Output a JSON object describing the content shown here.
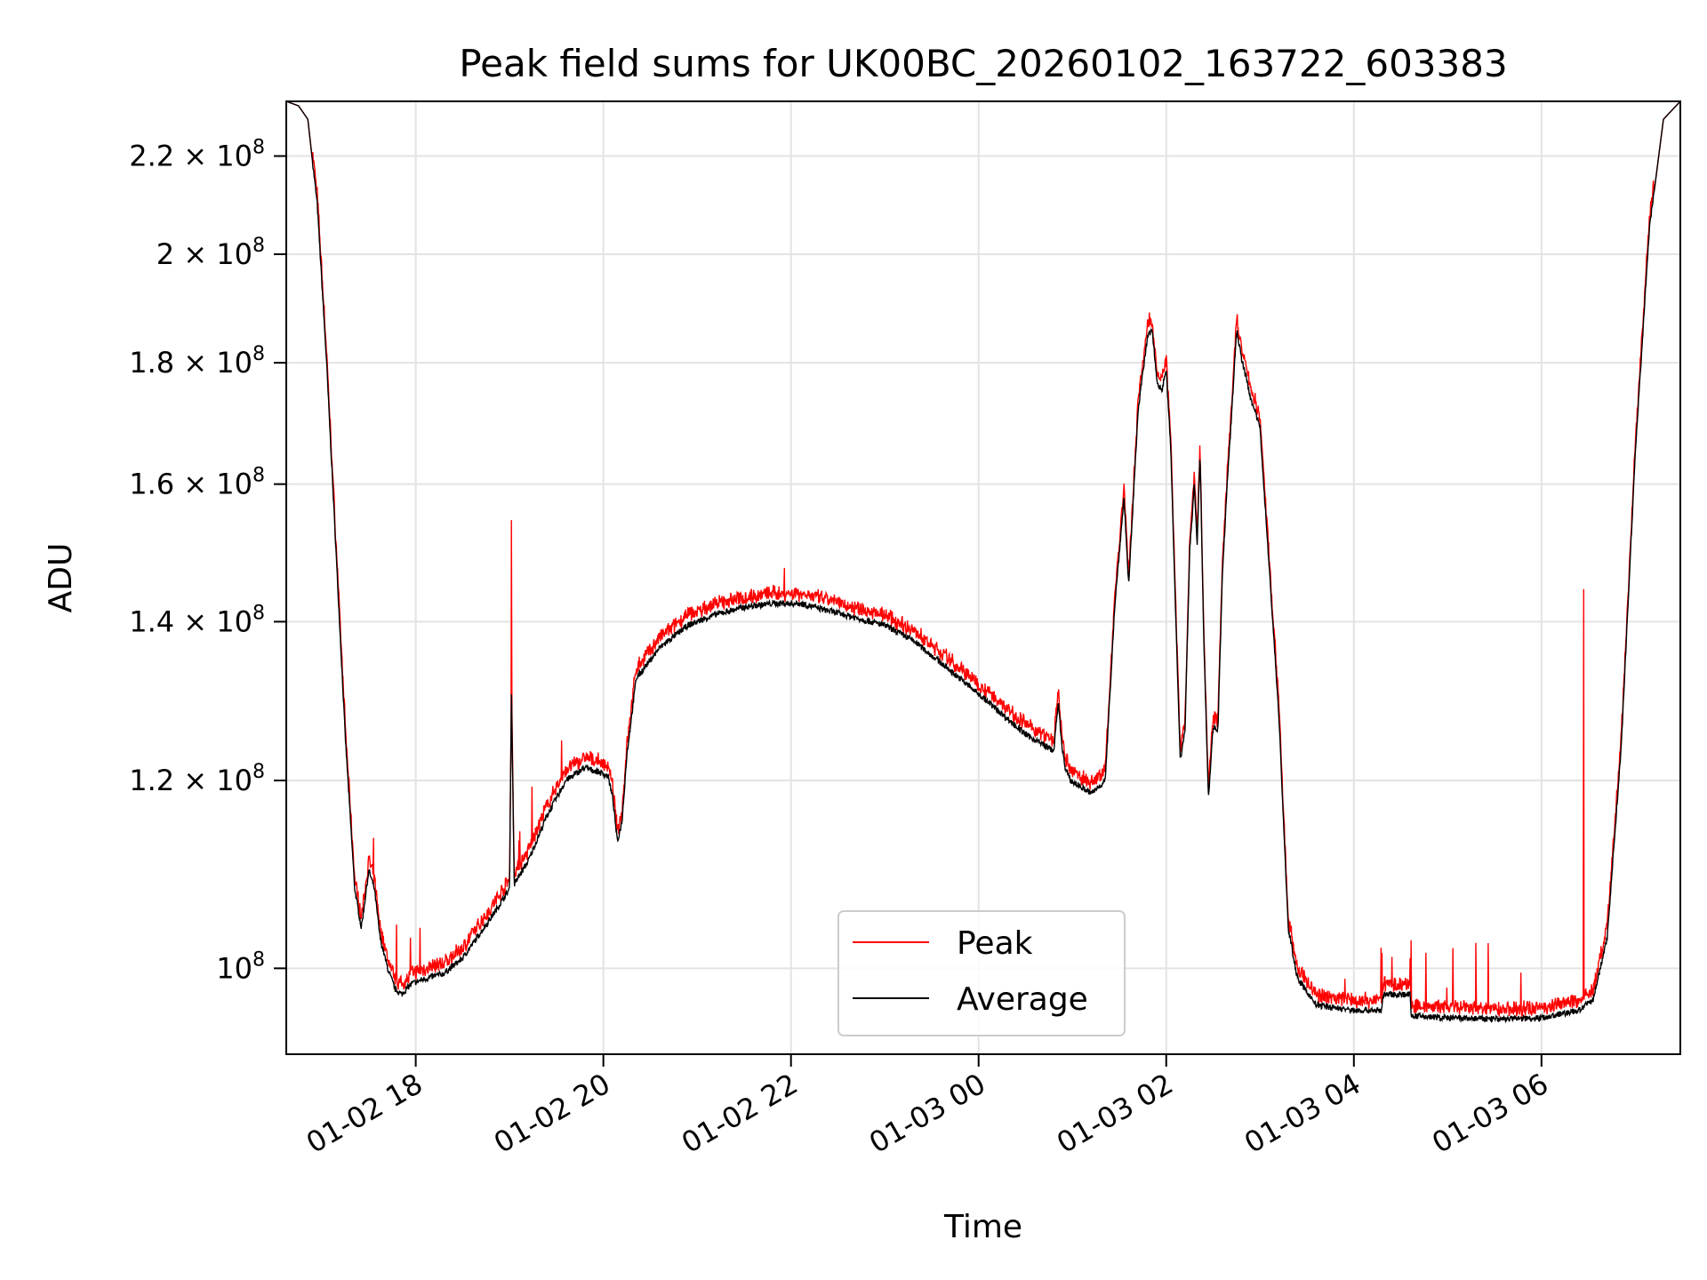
{
  "chart_data": {
    "type": "line",
    "title": "Peak field sums for UK00BC_20260102_163722_603383",
    "xlabel": "Time",
    "ylabel": "ADU",
    "yscale": "log",
    "x_unit": "hours since 2026-01-02 00:00",
    "xlim": [
      16.62,
      31.48
    ],
    "ylim": [
      92000000,
      232000000
    ],
    "grid": true,
    "legend_position": "lower center",
    "x_ticks": [
      {
        "value": 18,
        "label": "01-02 18"
      },
      {
        "value": 20,
        "label": "01-02 20"
      },
      {
        "value": 22,
        "label": "01-02 22"
      },
      {
        "value": 24,
        "label": "01-03 00"
      },
      {
        "value": 26,
        "label": "01-03 02"
      },
      {
        "value": 28,
        "label": "01-03 04"
      },
      {
        "value": 30,
        "label": "01-03 06"
      }
    ],
    "y_ticks": [
      {
        "value": 100000000,
        "mantissa": "",
        "exponent": "8"
      },
      {
        "value": 120000000,
        "mantissa": "1.2",
        "exponent": "8"
      },
      {
        "value": 140000000,
        "mantissa": "1.4",
        "exponent": "8"
      },
      {
        "value": 160000000,
        "mantissa": "1.6",
        "exponent": "8"
      },
      {
        "value": 180000000,
        "mantissa": "1.8",
        "exponent": "8"
      },
      {
        "value": 200000000,
        "mantissa": "2",
        "exponent": "8"
      },
      {
        "value": 220000000,
        "mantissa": "2.2",
        "exponent": "8"
      }
    ],
    "series": [
      {
        "name": "Peak",
        "color": "#ff0000",
        "spikes": [
          [
            17.55,
            113500000
          ],
          [
            19.02,
            154500000
          ],
          [
            21.93,
            147500000
          ],
          [
            25.82,
            189000000
          ],
          [
            28.3,
            101500000
          ],
          [
            28.6,
            101000000
          ],
          [
            29.3,
            102500000
          ],
          [
            30.45,
            144500000
          ]
        ]
      },
      {
        "name": "Average",
        "color": "#000000",
        "x": [
          16.62,
          16.75,
          16.85,
          16.95,
          17.05,
          17.15,
          17.25,
          17.35,
          17.42,
          17.5,
          17.56,
          17.62,
          17.7,
          17.78,
          17.85,
          17.95,
          18.1,
          18.3,
          18.5,
          18.8,
          19.0,
          19.02,
          19.05,
          19.2,
          19.4,
          19.6,
          19.8,
          19.95,
          20.05,
          20.1,
          20.15,
          20.2,
          20.25,
          20.35,
          20.6,
          20.9,
          21.2,
          21.5,
          21.8,
          22.1,
          22.4,
          22.7,
          23.0,
          23.3,
          23.6,
          23.9,
          24.2,
          24.5,
          24.8,
          24.85,
          24.88,
          24.92,
          24.98,
          25.2,
          25.35,
          25.45,
          25.55,
          25.6,
          25.7,
          25.8,
          25.85,
          25.9,
          25.95,
          26.0,
          26.05,
          26.1,
          26.15,
          26.2,
          26.25,
          26.3,
          26.33,
          26.36,
          26.4,
          26.45,
          26.5,
          26.55,
          26.6,
          26.65,
          26.7,
          26.75,
          26.8,
          26.9,
          27.0,
          27.2,
          27.3,
          27.4,
          27.6,
          28.0,
          28.3,
          28.31,
          28.6,
          28.61,
          29.0,
          29.5,
          30.0,
          30.4,
          30.55,
          30.7,
          30.85,
          31.0,
          31.15,
          31.3,
          31.48
        ],
        "y": [
          232000000,
          231000000,
          228000000,
          210000000,
          180000000,
          150000000,
          125000000,
          108000000,
          104000000,
          110000000,
          108000000,
          103000000,
          100000000,
          98000000,
          97500000,
          98500000,
          99000000,
          99500000,
          101000000,
          105000000,
          108000000,
          131000000,
          108500000,
          111000000,
          116000000,
          120000000,
          121500000,
          121000000,
          120500000,
          118000000,
          113000000,
          115500000,
          123000000,
          132500000,
          136500000,
          139500000,
          141000000,
          142000000,
          142500000,
          142500000,
          141500000,
          140500000,
          139500000,
          137500000,
          134500000,
          131500000,
          128500000,
          125500000,
          123500000,
          129500000,
          125000000,
          121500000,
          120000000,
          118500000,
          120000000,
          142000000,
          158000000,
          145000000,
          172000000,
          184500000,
          186000000,
          177000000,
          175000000,
          179000000,
          165000000,
          141000000,
          122500000,
          126000000,
          150000000,
          160000000,
          151000000,
          165000000,
          138000000,
          118000000,
          126500000,
          126000000,
          147000000,
          160000000,
          172000000,
          186000000,
          181000000,
          174000000,
          169000000,
          128000000,
          104000000,
          99000000,
          96500000,
          96000000,
          96000000,
          97500000,
          97500000,
          95500000,
          95300000,
          95200000,
          95300000,
          96000000,
          97000000,
          103000000,
          124000000,
          165000000,
          205000000,
          228000000,
          232000000
        ]
      }
    ]
  }
}
